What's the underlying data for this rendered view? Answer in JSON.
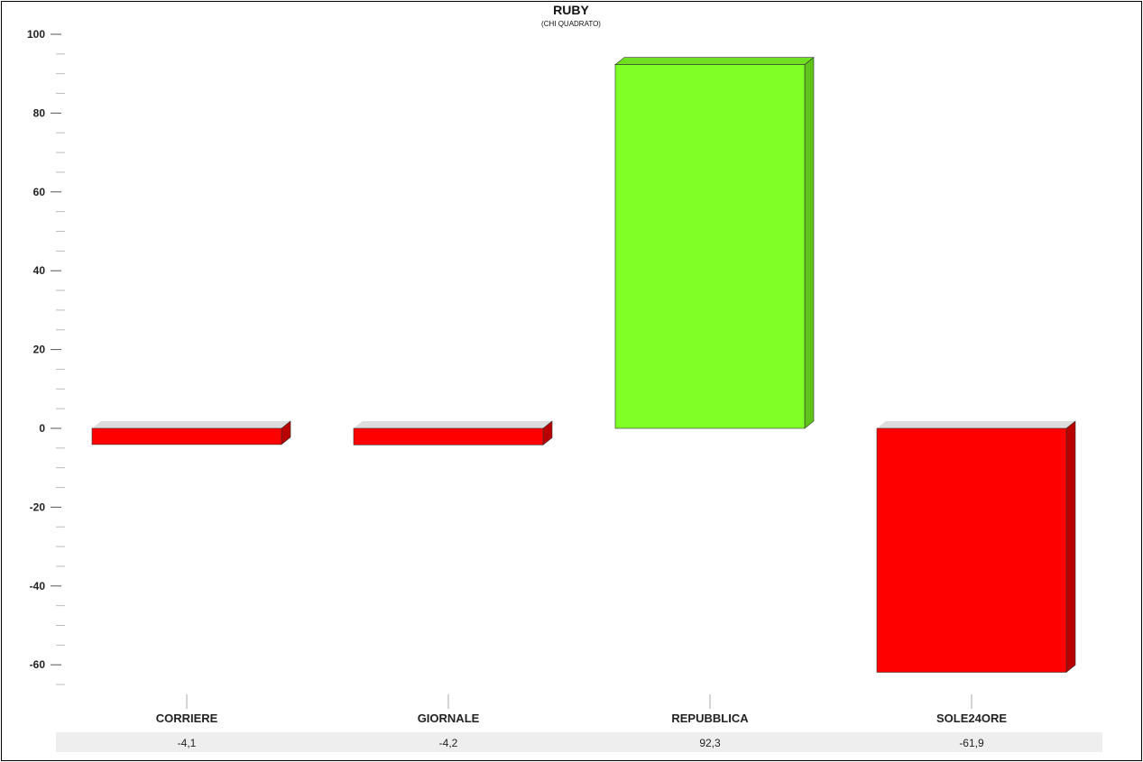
{
  "chart_data": {
    "type": "bar",
    "title": "RUBY",
    "subtitle": "(CHI QUADRATO)",
    "categories": [
      "CORRIERE",
      "GIORNALE",
      "REPUBBLICA",
      "SOLE24ORE"
    ],
    "values": [
      -4.1,
      -4.2,
      92.3,
      -61.9
    ],
    "value_labels": [
      "-4,1",
      "-4,2",
      "92,3",
      "-61,9"
    ],
    "ylim": [
      -65,
      100
    ],
    "yticks": [
      100,
      80,
      60,
      40,
      20,
      0,
      -20,
      -40,
      -60
    ],
    "ytick_labels": [
      "100",
      "80",
      "60",
      "40",
      "20",
      "0",
      "-20",
      "-40",
      "-60"
    ],
    "minor_tick_step": 5,
    "grid": false,
    "bar_style": "3d",
    "colors": {
      "positive": "#80ff26",
      "positive_side": "#5fc419",
      "positive_top": "#6ee020",
      "negative": "#ff0000",
      "negative_side": "#b80000",
      "negative_top": "#d90000",
      "zero_plate": "#dddddd",
      "value_row_bg": "#eeeeee"
    }
  }
}
